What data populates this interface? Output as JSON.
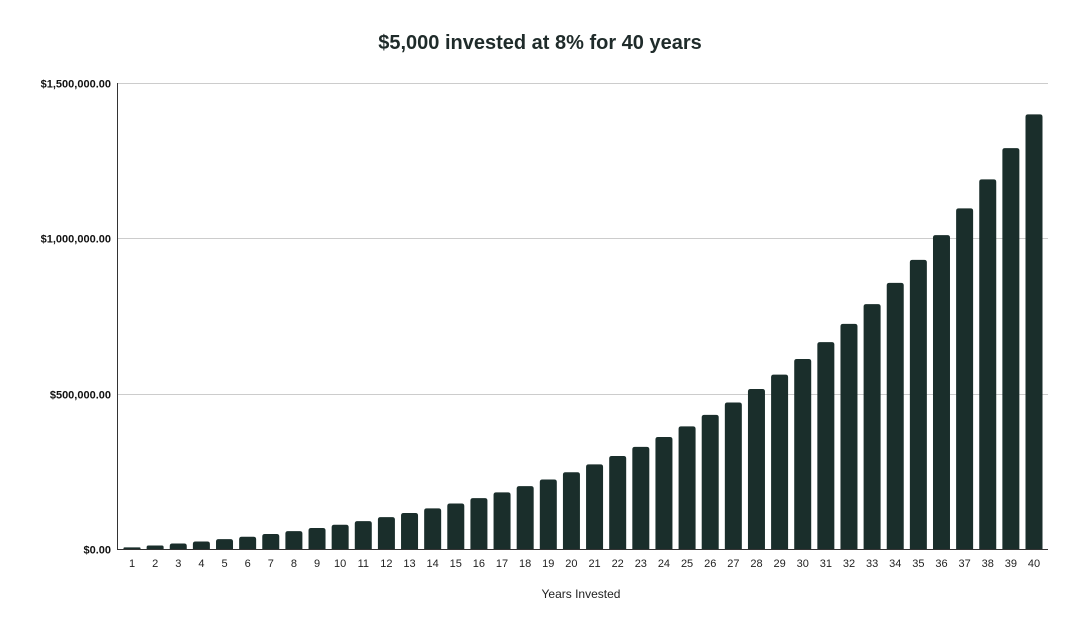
{
  "chart_data": {
    "type": "bar",
    "title": "$5,000 invested at 8% for 40 years",
    "xlabel": "Years Invested",
    "ylabel": "",
    "ylim": [
      0,
      1500000
    ],
    "yticks": [
      {
        "value": 0,
        "label": "$0.00"
      },
      {
        "value": 500000,
        "label": "$500,000.00"
      },
      {
        "value": 1000000,
        "label": "$1,000,000.00"
      },
      {
        "value": 1500000,
        "label": "$1,500,000.00"
      }
    ],
    "grid": true,
    "legend": "none",
    "bar_color": "#1a2e2b",
    "categories": [
      "1",
      "2",
      "3",
      "4",
      "5",
      "6",
      "7",
      "8",
      "9",
      "10",
      "11",
      "12",
      "13",
      "14",
      "15",
      "16",
      "17",
      "18",
      "19",
      "20",
      "21",
      "22",
      "23",
      "24",
      "25",
      "26",
      "27",
      "28",
      "29",
      "30",
      "31",
      "32",
      "33",
      "34",
      "35",
      "36",
      "37",
      "38",
      "39",
      "40"
    ],
    "values": [
      5400,
      11232,
      17531,
      24333,
      31680,
      39614,
      48183,
      57438,
      67433,
      78227,
      89886,
      102477,
      116075,
      130761,
      146621,
      163751,
      182251,
      202231,
      223810,
      247115,
      272284,
      299467,
      328824,
      360530,
      394773,
      431755,
      471696,
      514832,
      561418,
      611732,
      666070,
      724756,
      788137,
      856588,
      930515,
      1010356,
      1096584,
      1189711,
      1290288,
      1398911
    ]
  }
}
